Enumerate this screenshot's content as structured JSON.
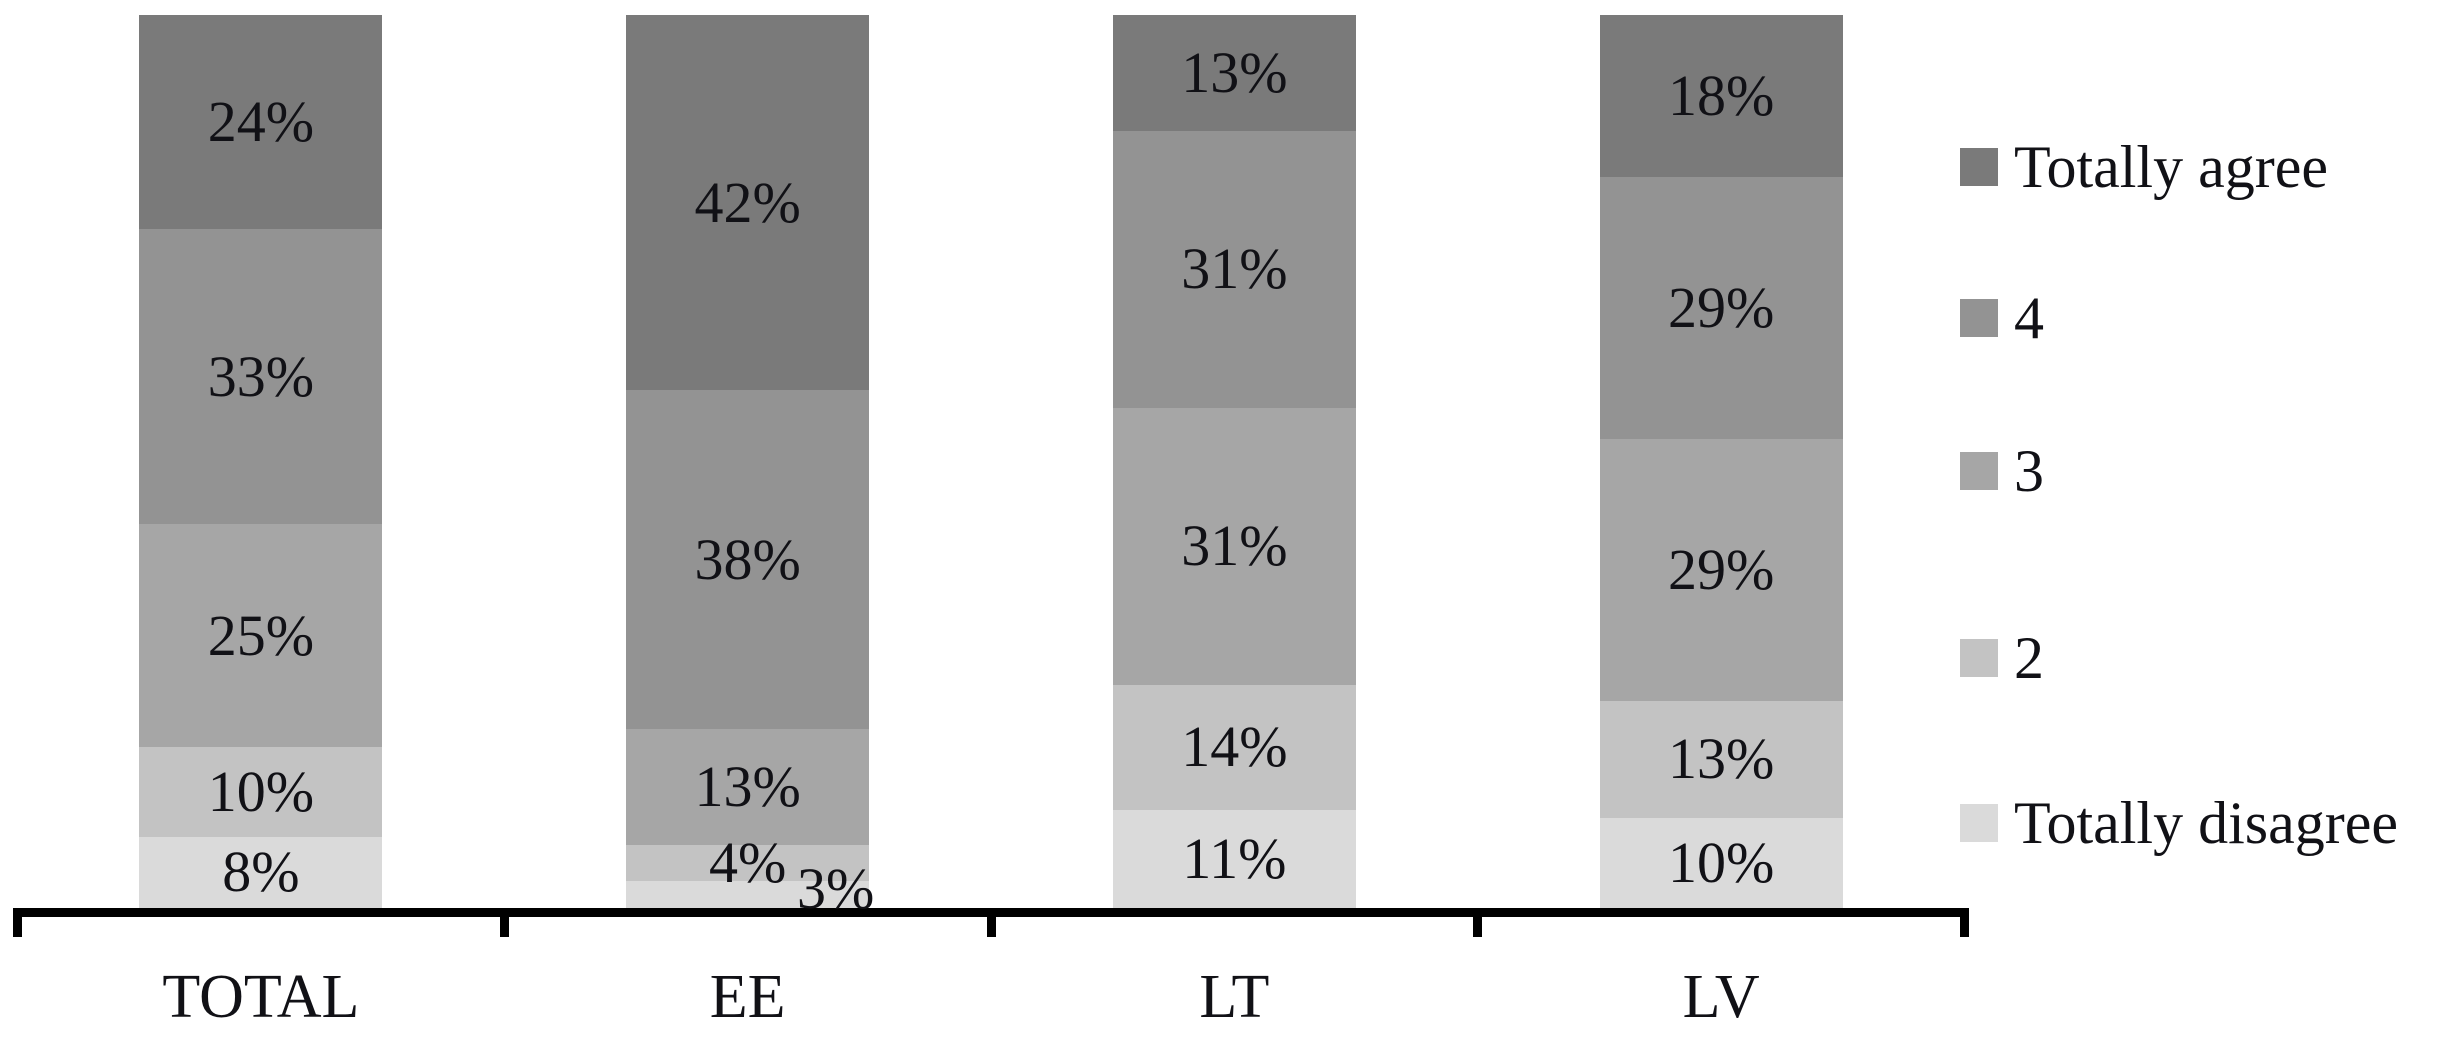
{
  "chart_data": {
    "type": "bar",
    "subtype": "stacked-100-percent-column",
    "title": "",
    "categories": [
      "TOTAL",
      "EE",
      "LT",
      "LV"
    ],
    "series": [
      {
        "name": "Totally agree",
        "color": "#7a7a7a",
        "values": [
          24,
          42,
          13,
          18
        ]
      },
      {
        "name": "4",
        "color": "#939393",
        "values": [
          33,
          38,
          31,
          29
        ]
      },
      {
        "name": "3",
        "color": "#a6a6a6",
        "values": [
          25,
          13,
          31,
          29
        ]
      },
      {
        "name": "2",
        "color": "#c3c3c3",
        "values": [
          10,
          4,
          14,
          13
        ]
      },
      {
        "name": "Totally disagree",
        "color": "#dadada",
        "values": [
          8,
          3,
          11,
          10
        ]
      }
    ],
    "stack_order_top_to_bottom": [
      "Totally agree",
      "4",
      "3",
      "2",
      "Totally disagree"
    ],
    "data_labels": true,
    "value_suffix": "%",
    "legend_position": "right",
    "legend_items_top_to_bottom": [
      "Totally agree",
      "4",
      "3",
      "2",
      "Totally disagree"
    ],
    "axis": {
      "baseline_color": "#000000",
      "tick_marks": 5,
      "gridlines": false
    },
    "label_offsets": [
      {
        "category": "EE",
        "series": "Totally disagree",
        "dx": 88,
        "dy": -6
      }
    ],
    "text_color": "#111116",
    "background": "#ffffff"
  }
}
